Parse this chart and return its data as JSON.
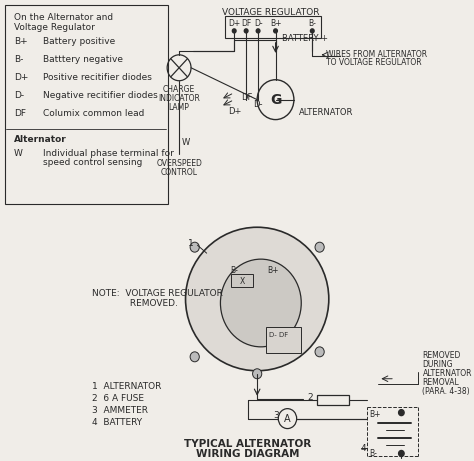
{
  "bg_color": "#f0ede8",
  "line_color": "#2a2a2a",
  "title_line1": "TYPICAL ALTERNATOR",
  "title_line2": "WIRING DIAGRAM",
  "legend_entries": [
    [
      "B+",
      "Battery positive"
    ],
    [
      "B-",
      "Batttery negative"
    ],
    [
      "D+",
      "Positive recitifier diodes"
    ],
    [
      "D-",
      "Negative recitifier diodes"
    ],
    [
      "DF",
      "Columix common lead"
    ]
  ],
  "alternator_title": "Alternator",
  "alternator_w_desc1": "Individual phase terminal for",
  "alternator_w_desc2": "speed control sensing",
  "vr_label": "VOLTAGE REGULATOR",
  "vr_terminals": [
    "D+",
    "DF",
    "D-",
    "B+",
    "B-"
  ],
  "battery_plus_label": "BATTERY +",
  "wires_label1": "WIRES FROM ALTERNATOR",
  "wires_label2": "TO VOLTAGE REGULATOR",
  "charge_lamp_label": [
    "CHARGE",
    "INDICATOR",
    "LAMP"
  ],
  "alternator_label": "ALTERNATOR",
  "overspeed_label": [
    "OVERSPEED",
    "CONTROL"
  ],
  "note_label1": "NOTE:  VOLTAGE REGULATOR",
  "note_label2": "         REMOVED.",
  "removed_label": [
    "REMOVED",
    "DURING",
    "ALTERNATOR",
    "REMOVAL",
    "(PARA. 4-38)"
  ],
  "items_label": [
    "1  ALTERNATOR",
    "2  6 A FUSE",
    "3  AMMETER",
    "4  BATTERY"
  ],
  "font_size": 7
}
